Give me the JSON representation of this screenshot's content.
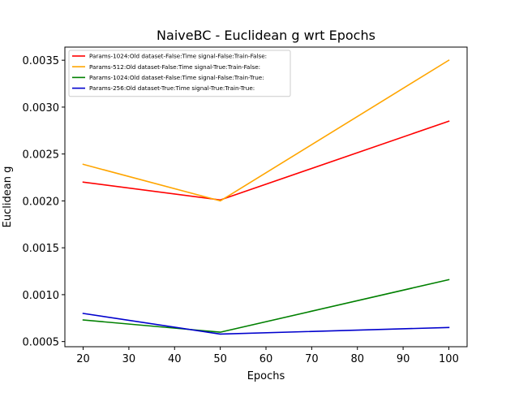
{
  "chart_data": {
    "type": "line",
    "title": "NaiveBC - Euclidean g wrt Epochs",
    "xlabel": "Epochs",
    "ylabel": "Euclidean g",
    "x": [
      20,
      50,
      100
    ],
    "xlim": [
      16,
      104
    ],
    "ylim": [
      0.000445,
      0.00364
    ],
    "xticks": [
      20,
      30,
      40,
      50,
      60,
      70,
      80,
      90,
      100
    ],
    "yticks": [
      0.0005,
      0.001,
      0.0015,
      0.002,
      0.0025,
      0.003,
      0.0035
    ],
    "ytick_labels": [
      "0.0005",
      "0.0010",
      "0.0015",
      "0.0020",
      "0.0025",
      "0.0030",
      "0.0035"
    ],
    "grid": false,
    "legend_position": "top-left",
    "series": [
      {
        "name": "Params-1024:Old dataset-False:Time signal-False:Train-False:",
        "color": "#ff0000",
        "values": [
          0.0022,
          0.00201,
          0.00285
        ]
      },
      {
        "name": "Params-512:Old dataset-False:Time signal-True:Train-False:",
        "color": "#ffa500",
        "values": [
          0.00239,
          0.002,
          0.0035
        ]
      },
      {
        "name": "Params-1024:Old dataset-False:Time signal-False:Train-True:",
        "color": "#008000",
        "values": [
          0.00073,
          0.0006,
          0.00116
        ]
      },
      {
        "name": "Params-256:Old dataset-True:Time signal-True:Train-True:",
        "color": "#0000cd",
        "values": [
          0.0008,
          0.00058,
          0.00065
        ]
      }
    ]
  }
}
